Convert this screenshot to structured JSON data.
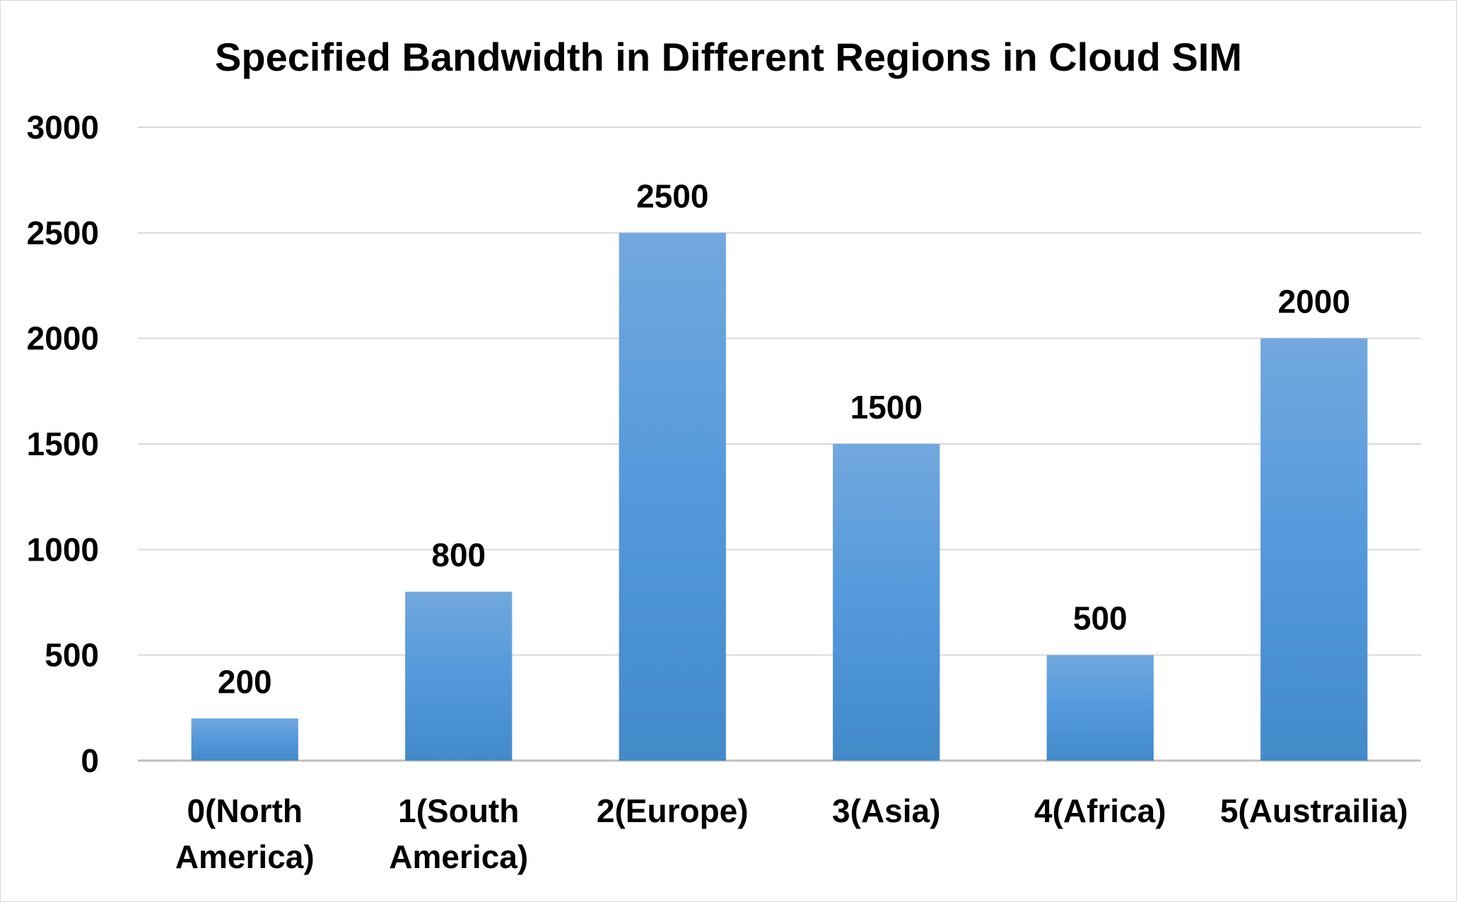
{
  "chart_data": {
    "type": "bar",
    "title": "Specified Bandwidth in Different Regions in Cloud SIM",
    "xlabel": "",
    "ylabel": "",
    "categories": [
      [
        "0(North",
        "America)"
      ],
      [
        "1(South",
        "America)"
      ],
      [
        "2(Europe)"
      ],
      [
        "3(Asia)"
      ],
      [
        "4(Africa)"
      ],
      [
        "5(Austrailia)"
      ]
    ],
    "values": [
      200,
      800,
      2500,
      1500,
      500,
      2000
    ],
    "ylim": [
      0,
      3000
    ],
    "yticks": [
      0,
      500,
      1000,
      1500,
      2000,
      2500,
      3000
    ],
    "grid": true,
    "legend": "none",
    "bar_color": "#5b9bd5"
  }
}
